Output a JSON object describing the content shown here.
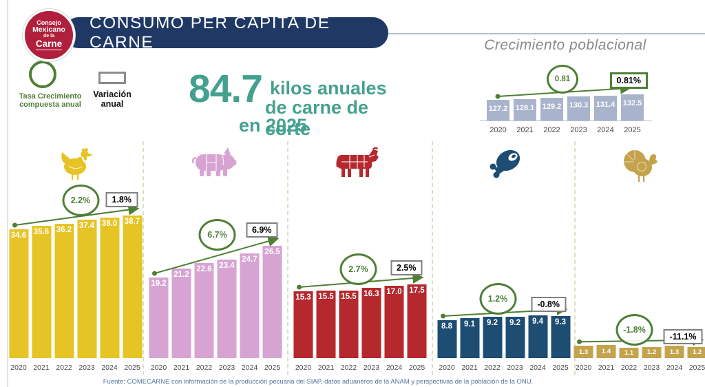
{
  "header": {
    "title": "CONSUMO PER CÁPITA DE CARNE",
    "logo": {
      "line1": "Consejo",
      "line2": "Mexicano",
      "line3": "de la",
      "line4": "Carne"
    }
  },
  "legend": {
    "cagr_label": "Tasa Crecimiento compuesta anual",
    "variation_label": "Variación anual"
  },
  "headline": {
    "value": "84.7",
    "line1": "kilos anuales",
    "line2": "de carne de corte",
    "line3": "en 2025"
  },
  "colors": {
    "accent_green": "#4e7f35",
    "header_navy": "#1f3864",
    "headline_teal": "#45a18f",
    "logo_red": "#b01f3c",
    "population_bar": "#a8b4cc",
    "chicken_bar": "#e6c426",
    "pork_bar": "#d7a3d2",
    "beef_bar": "#b5282e",
    "ham_bar": "#1d4d73",
    "turkey_bar": "#c5a24c",
    "variation_box_border": "#7f7f7f"
  },
  "chart_data": [
    {
      "id": "crecimiento-poblacional",
      "type": "bar",
      "title": "Crecimiento poblacional",
      "categories": [
        "2020",
        "2021",
        "2022",
        "2023",
        "2024",
        "2025"
      ],
      "values": [
        127.2,
        128.1,
        129.2,
        130.3,
        131.4,
        132.5
      ],
      "value_labels": [
        "127.2",
        "128.1",
        "129.2",
        "130.3",
        "131.4",
        "132.5"
      ],
      "cagr_label": "0.81",
      "variation_label": "0.81%",
      "bar_color": "#a8b4cc"
    },
    {
      "id": "pollo",
      "icon": "chicken-icon",
      "type": "bar",
      "categories": [
        "2020",
        "2021",
        "2022",
        "2023",
        "2024",
        "2025"
      ],
      "values": [
        34.6,
        35.6,
        36.2,
        37.4,
        38.0,
        38.7
      ],
      "value_labels": [
        "34.6",
        "35.6",
        "36.2",
        "37.4",
        "38.0",
        "38.7"
      ],
      "cagr_label": "2.2%",
      "variation_label": "1.8%",
      "bar_color": "#e6c426"
    },
    {
      "id": "cerdo",
      "icon": "pig-icon",
      "type": "bar",
      "categories": [
        "2020",
        "2021",
        "2022",
        "2023",
        "2024",
        "2025"
      ],
      "values": [
        19.2,
        21.2,
        22.6,
        23.4,
        24.7,
        26.5
      ],
      "value_labels": [
        "19.2",
        "21.2",
        "22.6",
        "23.4",
        "24.7",
        "26.5"
      ],
      "cagr_label": "6.7%",
      "variation_label": "6.9%",
      "bar_color": "#d7a3d2"
    },
    {
      "id": "res",
      "icon": "cow-icon",
      "type": "bar",
      "categories": [
        "2020",
        "2021",
        "2022",
        "2023",
        "2024",
        "2025"
      ],
      "values": [
        15.3,
        15.5,
        15.5,
        16.3,
        17.0,
        17.5
      ],
      "value_labels": [
        "15.3",
        "15.5",
        "15.5",
        "16.3",
        "17.0",
        "17.5"
      ],
      "cagr_label": "2.7%",
      "variation_label": "2.5%",
      "bar_color": "#b5282e"
    },
    {
      "id": "jamon",
      "icon": "ham-icon",
      "type": "bar",
      "categories": [
        "2020",
        "2021",
        "2022",
        "2023",
        "2024",
        "2025"
      ],
      "values": [
        8.8,
        9.1,
        9.2,
        9.2,
        9.4,
        9.3
      ],
      "value_labels": [
        "8.8",
        "9.1",
        "9.2",
        "9.2",
        "9.4",
        "9.3"
      ],
      "cagr_label": "1.2%",
      "variation_label": "-0.8%",
      "bar_color": "#1d4d73"
    },
    {
      "id": "pavo",
      "icon": "turkey-icon",
      "type": "bar",
      "categories": [
        "2020",
        "2021",
        "2022",
        "2023",
        "2024",
        "2025"
      ],
      "values": [
        1.3,
        1.4,
        1.1,
        1.2,
        1.3,
        1.2
      ],
      "value_labels": [
        "1.3",
        "1.4",
        "1.1",
        "1.2",
        "1.3",
        "1.2"
      ],
      "cagr_label": "-1.8%",
      "variation_label": "-11.1%",
      "bar_color": "#c5a24c"
    }
  ],
  "footer": {
    "source": "Fuente: COMECARNE con información de la producción pecuaria del SIAP, datos aduaneros de la ANAM y perspectivas de la población de la ONU."
  }
}
